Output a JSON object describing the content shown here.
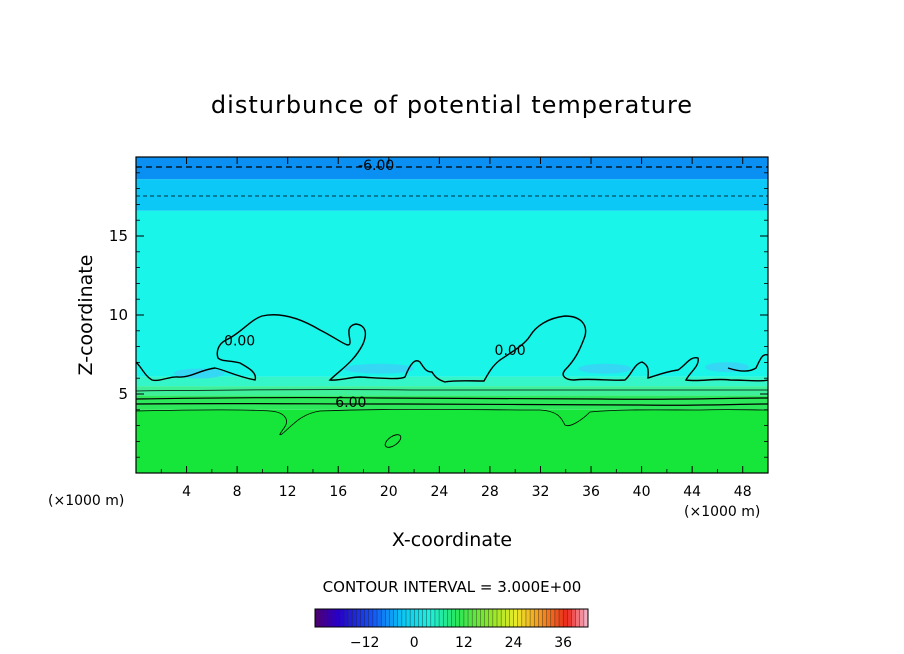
{
  "chart_data": {
    "type": "heatmap",
    "title": "disturbunce of potential temperature",
    "xlabel": "X-coordinate",
    "ylabel": "Z-coordinate",
    "x_unit_left": "(×1000 m)",
    "x_unit_right": "(×1000 m)",
    "xlim": [
      0,
      50
    ],
    "ylim": [
      0,
      20
    ],
    "x_ticks": [
      4,
      8,
      12,
      16,
      20,
      24,
      28,
      32,
      36,
      40,
      44,
      48
    ],
    "y_ticks": [
      5,
      10,
      15
    ],
    "contour_interval_text": "CONTOUR INTERVAL = 3.000E+00",
    "contour_labels": [
      {
        "text": "-6.00",
        "x": 19.0,
        "y": 19.5
      },
      {
        "text": "0.00",
        "x": 8.2,
        "y": 8.4
      },
      {
        "text": "0.00",
        "x": 29.6,
        "y": 7.8
      },
      {
        "text": "6.00",
        "x": 17.0,
        "y": 4.5
      }
    ],
    "bands": [
      {
        "z0": 0,
        "z1": 4.0,
        "value": 8,
        "color": "#16e63a"
      },
      {
        "z0": 4.0,
        "z1": 4.9,
        "value": 6,
        "color": "#2ce85a"
      },
      {
        "z0": 4.9,
        "z1": 5.5,
        "value": 3,
        "color": "#3ff09a"
      },
      {
        "z0": 5.5,
        "z1": 6.1,
        "value": 1,
        "color": "#35f6c8"
      },
      {
        "z0": 6.1,
        "z1": 16.6,
        "value": 0,
        "color": "#19f5e8"
      },
      {
        "z0": 16.6,
        "z1": 18.6,
        "value": -3,
        "color": "#0cc8f6"
      },
      {
        "z0": 18.6,
        "z1": 20,
        "value": -7,
        "color": "#0a90f2"
      }
    ],
    "cool_patches": [
      {
        "x0": 3.0,
        "x1": 7.0,
        "z": 6.3
      },
      {
        "x0": 16.5,
        "x1": 22.0,
        "z": 6.6
      },
      {
        "x0": 35.0,
        "x1": 39.2,
        "z": 6.6
      },
      {
        "x0": 45.0,
        "x1": 48.5,
        "z": 6.7
      }
    ],
    "colorbar": {
      "ticks": [
        -12,
        0,
        12,
        24,
        36
      ],
      "tick_labels": [
        "−12",
        "0",
        "12",
        "24",
        "36"
      ],
      "range": [
        -24,
        42
      ]
    },
    "grid": false
  }
}
